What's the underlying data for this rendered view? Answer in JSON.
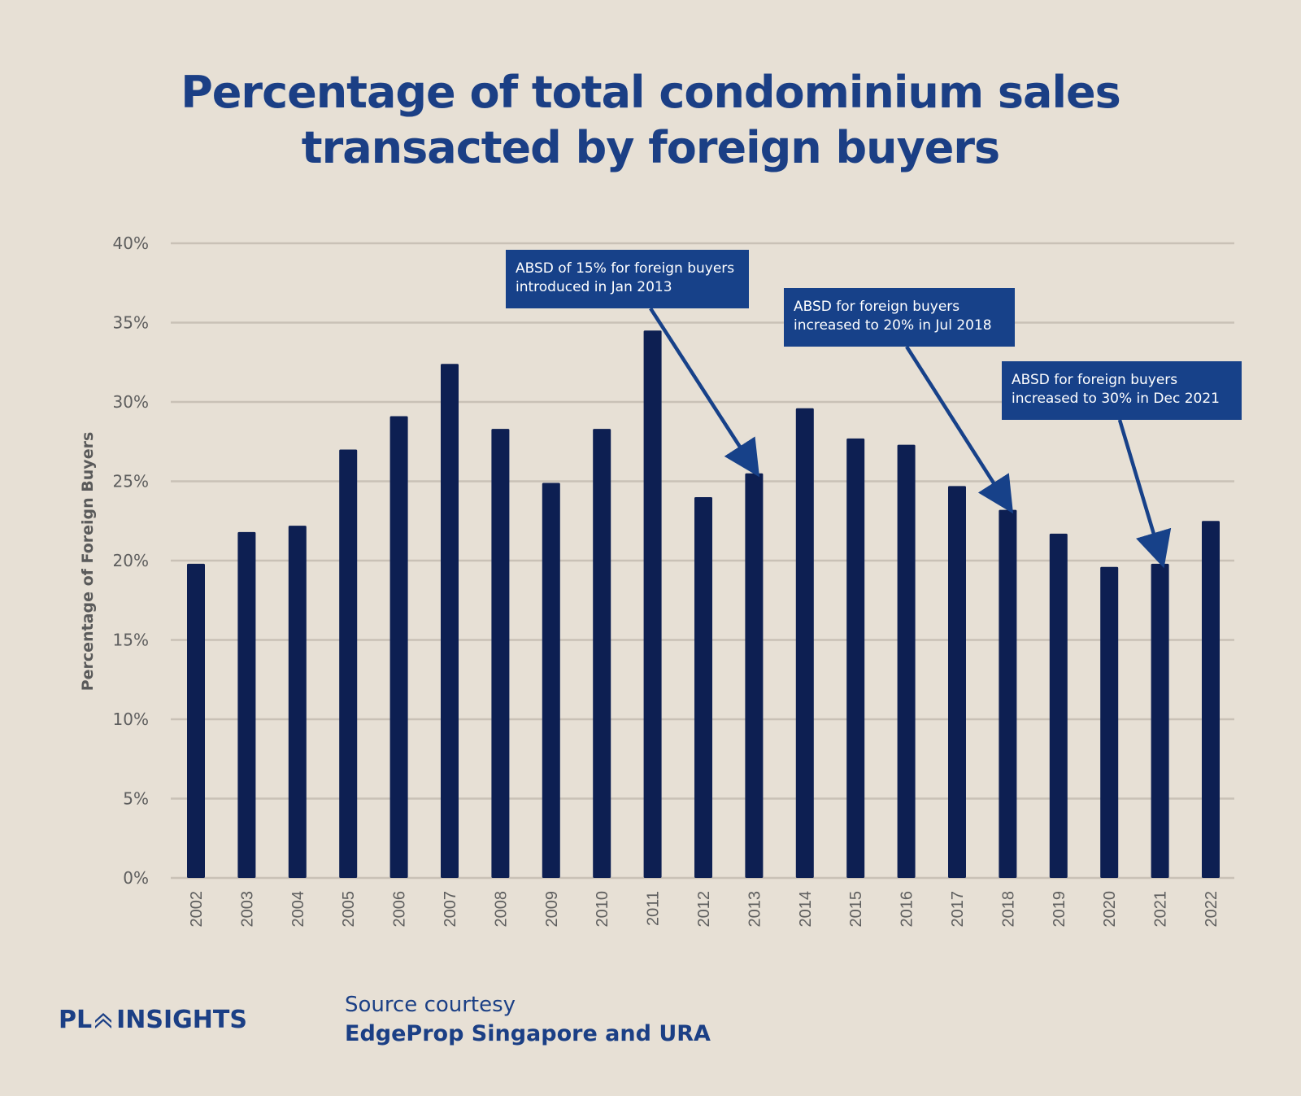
{
  "header": {
    "title_line1": "Percentage of total condominium sales",
    "title_line2": "transacted by foreign buyers"
  },
  "colors": {
    "background": "#e7e0d5",
    "bar": "#0d1f52",
    "annotation": "#174189",
    "title": "#1b3f85",
    "gridline": "#c9c1b6"
  },
  "chart_data": {
    "type": "bar",
    "title": "Percentage of total condominium sales transacted by foreign buyers",
    "xlabel": "",
    "ylabel": "Percentage of Foreign Buyers",
    "categories": [
      "2002",
      "2003",
      "2004",
      "2005",
      "2006",
      "2007",
      "2008",
      "2009",
      "2010",
      "2011",
      "2012",
      "2013",
      "2014",
      "2015",
      "2016",
      "2017",
      "2018",
      "2019",
      "2020",
      "2021",
      "2022"
    ],
    "values": [
      19.8,
      21.8,
      22.2,
      27.0,
      29.1,
      32.4,
      28.3,
      24.9,
      28.3,
      34.5,
      24.0,
      25.5,
      29.6,
      27.7,
      27.3,
      24.7,
      23.2,
      21.7,
      19.6,
      19.8,
      22.5
    ],
    "ylim": [
      0,
      40
    ],
    "yticks": [
      0,
      5,
      10,
      15,
      20,
      25,
      30,
      35,
      40
    ],
    "ytick_labels": [
      "0%",
      "5%",
      "10%",
      "15%",
      "20%",
      "25%",
      "30%",
      "35%",
      "40%"
    ],
    "grid": true,
    "legend": "none",
    "annotations": [
      {
        "line1": "ABSD of 15% for foreign buyers",
        "line2": "introduced in Jan 2013",
        "target": "2013"
      },
      {
        "line1": "ABSD for foreign buyers",
        "line2": "increased to 20% in Jul 2018",
        "target": "2018"
      },
      {
        "line1": "ABSD for foreign buyers",
        "line2": "increased to 30% in Dec 2021",
        "target": "2021"
      }
    ]
  },
  "footer": {
    "logo_left": "PL",
    "logo_right": "INSIGHTS",
    "source_line1": "Source courtesy",
    "source_line2": "EdgeProp Singapore and URA"
  }
}
